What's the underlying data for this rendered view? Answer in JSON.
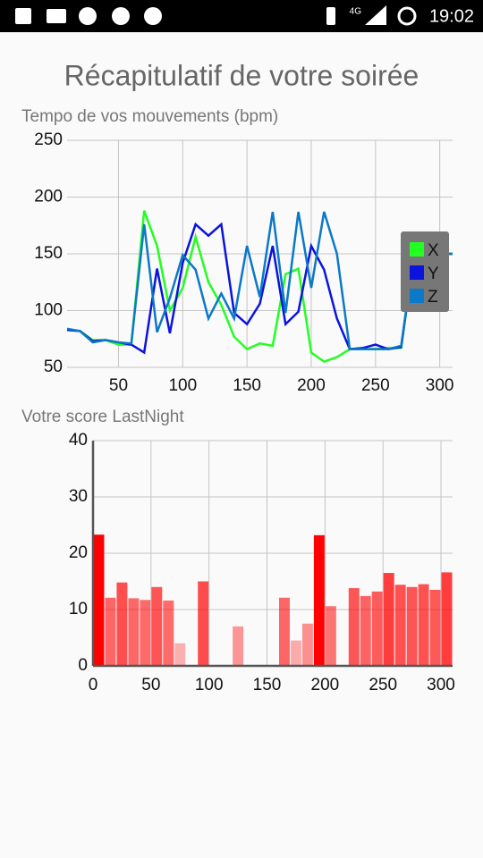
{
  "status_bar": {
    "network": "4G",
    "time": "19:02"
  },
  "title": "Récapitulatif de votre soirée",
  "chart_data": [
    {
      "type": "line",
      "title": "Tempo de vos mouvements (bpm)",
      "x": [
        10,
        20,
        30,
        40,
        50,
        60,
        70,
        80,
        90,
        100,
        110,
        120,
        130,
        140,
        150,
        160,
        170,
        180,
        190,
        200,
        210,
        220,
        230,
        240,
        250,
        260,
        270,
        280,
        290,
        300,
        310
      ],
      "series": [
        {
          "name": "X",
          "color": "#22ff22",
          "values": [
            83,
            82,
            74,
            74,
            70,
            70,
            188,
            157,
            100,
            120,
            165,
            125,
            105,
            77,
            66,
            71,
            69,
            132,
            137,
            63,
            55,
            59,
            66,
            66,
            66,
            67,
            67,
            150,
            150,
            150,
            150
          ]
        },
        {
          "name": "Y",
          "color": "#0a14dc",
          "values": [
            83,
            82,
            73,
            74,
            72,
            70,
            63,
            137,
            80,
            142,
            176,
            166,
            176,
            98,
            88,
            106,
            157,
            88,
            99,
            157,
            136,
            93,
            66,
            67,
            70,
            66,
            68,
            150,
            150,
            150,
            150
          ]
        },
        {
          "name": "Z",
          "color": "#0b78c8",
          "values": [
            84,
            82,
            72,
            74,
            72,
            71,
            176,
            81,
            111,
            149,
            136,
            93,
            115,
            93,
            157,
            112,
            187,
            98,
            187,
            120,
            187,
            150,
            66,
            66,
            66,
            66,
            69,
            150,
            150,
            150,
            150
          ]
        }
      ],
      "xlim": [
        10,
        310
      ],
      "xticks": [
        50,
        100,
        150,
        200,
        250,
        300
      ],
      "ylim": [
        50,
        250
      ],
      "yticks": [
        50,
        100,
        150,
        200,
        250
      ],
      "grid": true,
      "legend": "right"
    },
    {
      "type": "histogram",
      "title": "Votre score LastNight",
      "bins": [
        0,
        10,
        20,
        30,
        40,
        50,
        60,
        70,
        80,
        90,
        100,
        110,
        120,
        130,
        140,
        150,
        160,
        170,
        180,
        190,
        200,
        210,
        220,
        230,
        240,
        250,
        260,
        270,
        280,
        290,
        300,
        310
      ],
      "values": [
        23.3,
        12.1,
        14.8,
        12,
        11.7,
        14,
        11.6,
        4,
        0,
        15,
        0,
        0,
        7,
        0,
        0,
        0,
        12.1,
        4.5,
        7.5,
        23.2,
        10.6,
        0,
        13.8,
        12.4,
        13.2,
        16.5,
        14.4,
        14,
        14.5,
        13.5,
        16.6
      ],
      "color": "#ff0000",
      "xlim": [
        0,
        310
      ],
      "xticks": [
        0,
        50,
        100,
        150,
        200,
        250,
        300
      ],
      "ylim": [
        0,
        40
      ],
      "yticks": [
        0,
        10,
        20,
        30,
        40
      ],
      "grid": true
    }
  ]
}
